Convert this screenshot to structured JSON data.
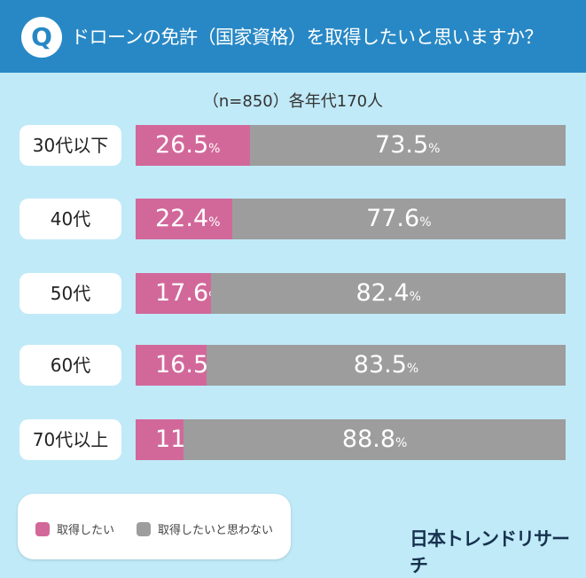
{
  "header": {
    "title": "ドローンの免許（国家資格）を取得したいと思いますか？",
    "q_icon": "Q"
  },
  "colors": {
    "header": "#2888c5",
    "background": "#c0eaf8",
    "want": "#d2689a",
    "not_want": "#9d9d9d"
  },
  "chart_data": {
    "type": "bar",
    "stacked": true,
    "orientation": "horizontal",
    "subtitle": "（n=850）各年代170人",
    "categories": [
      "30代以下",
      "40代",
      "50代",
      "60代",
      "70代以上"
    ],
    "series": [
      {
        "name": "取得したい",
        "values": [
          26.5,
          22.4,
          17.6,
          16.5,
          11.2
        ]
      },
      {
        "name": "取得したいと思わない",
        "values": [
          73.5,
          77.6,
          82.4,
          83.5,
          88.8
        ]
      }
    ],
    "unit": "%",
    "xlim": [
      0,
      100
    ],
    "legend": "bottom-left"
  },
  "brand": "日本トレンドリサーチ"
}
